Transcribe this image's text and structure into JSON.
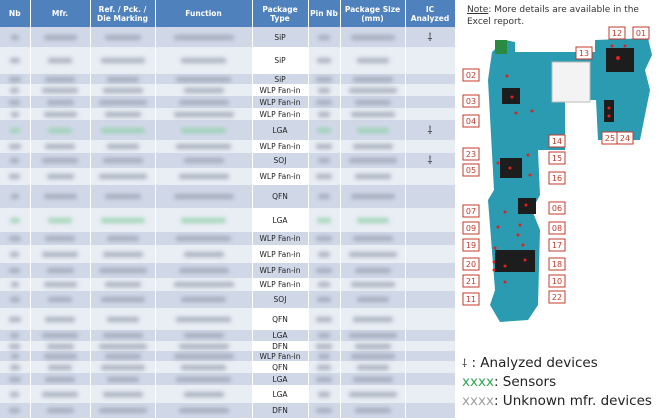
{
  "table": {
    "headers": [
      "Nb",
      "Mfr.",
      "Ref. / Pck. / Die Marking",
      "Function",
      "Package Type",
      "Pin Nb",
      "Package Size (mm)",
      "IC Analyzed"
    ],
    "rows": [
      {
        "package": "SiP",
        "analyzed": true,
        "kind": "normal"
      },
      {
        "package": "SiP",
        "analyzed": false,
        "kind": "normal"
      },
      {
        "package": "SiP",
        "analyzed": false,
        "kind": "normal"
      },
      {
        "package": "WLP Fan-in",
        "analyzed": false,
        "kind": "normal"
      },
      {
        "package": "WLP Fan-in",
        "analyzed": false,
        "kind": "normal"
      },
      {
        "package": "WLP Fan-in",
        "analyzed": false,
        "kind": "normal"
      },
      {
        "package": "LGA",
        "analyzed": true,
        "kind": "sensor"
      },
      {
        "package": "WLP Fan-in",
        "analyzed": false,
        "kind": "normal"
      },
      {
        "package": "SOJ",
        "analyzed": true,
        "kind": "normal"
      },
      {
        "package": "WLP Fan-in",
        "analyzed": false,
        "kind": "normal"
      },
      {
        "package": "QFN",
        "analyzed": false,
        "kind": "normal"
      },
      {
        "package": "LGA",
        "analyzed": false,
        "kind": "sensor"
      },
      {
        "package": "WLP Fan-in",
        "analyzed": false,
        "kind": "normal"
      },
      {
        "package": "WLP Fan-in",
        "analyzed": false,
        "kind": "normal"
      },
      {
        "package": "WLP Fan-in",
        "analyzed": false,
        "kind": "normal"
      },
      {
        "package": "WLP Fan-in",
        "analyzed": false,
        "kind": "normal"
      },
      {
        "package": "SOJ",
        "analyzed": false,
        "kind": "unknown"
      },
      {
        "package": "QFN",
        "analyzed": false,
        "kind": "normal"
      },
      {
        "package": "LGA",
        "analyzed": false,
        "kind": "normal"
      },
      {
        "package": "DFN",
        "analyzed": false,
        "kind": "unknown"
      },
      {
        "package": "WLP Fan-in",
        "analyzed": false,
        "kind": "normal"
      },
      {
        "package": "QFN",
        "analyzed": false,
        "kind": "normal"
      },
      {
        "package": "LGA",
        "analyzed": false,
        "kind": "normal"
      },
      {
        "package": "LGA",
        "analyzed": false,
        "kind": "normal"
      },
      {
        "package": "DFN",
        "analyzed": false,
        "kind": "normal"
      }
    ]
  },
  "note": {
    "label": "Note",
    "text": ": More details are available in the Excel report."
  },
  "board_labels": {
    "l01": "01",
    "l02": "02",
    "l03": "03",
    "l04": "04",
    "l05": "05",
    "l06": "06",
    "l07": "07",
    "l08": "08",
    "l09": "09",
    "l10": "10",
    "l11": "11",
    "l12": "12",
    "l13": "13",
    "l14": "14",
    "l15": "15",
    "l16": "16",
    "l17": "17",
    "l18": "18",
    "l19": "19",
    "l20": "20",
    "l21": "21",
    "l22": "22",
    "l23": "23",
    "l24": "24",
    "l25": "25"
  },
  "legend": {
    "analyzed": ": Analyzed devices",
    "sensors_sample": "xxxx",
    "sensors": ": Sensors",
    "unknown_sample": "xxxx",
    "unknown": ": Unknown mfr. devices"
  },
  "colors": {
    "header": "#4f81bd",
    "row_odd": "#d0d8e8",
    "row_even": "#e9edf4",
    "sensor": "#2eaa50",
    "unknown": "#a0a0a0",
    "label": "#c0392b",
    "board": "#2a9bb0"
  },
  "icons": {
    "analyzed": "probe-icon"
  }
}
